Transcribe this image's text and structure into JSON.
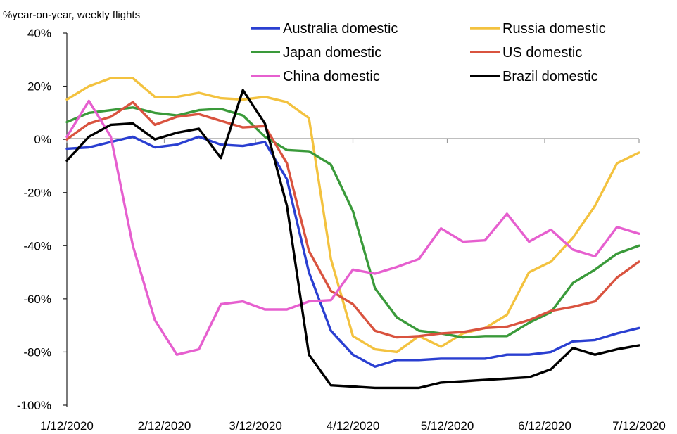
{
  "chart_data": {
    "type": "line",
    "ylabel": "%year-on-year, weekly flights",
    "ylim": [
      -100,
      40
    ],
    "y_ticks": [
      40,
      20,
      0,
      -20,
      -40,
      -60,
      -80,
      -100
    ],
    "y_tick_labels": [
      "40%",
      "20%",
      "0%",
      "-20%",
      "-40%",
      "-60%",
      "-80%",
      "-100%"
    ],
    "x_start": "1/12/2020",
    "x_end": "7/12/2020",
    "x_ticks": [
      "1/12/2020",
      "2/12/2020",
      "3/12/2020",
      "4/12/2020",
      "5/12/2020",
      "6/12/2020",
      "7/12/2020"
    ],
    "x": [
      "1/12/2020",
      "1/19/2020",
      "1/26/2020",
      "2/2/2020",
      "2/9/2020",
      "2/16/2020",
      "2/23/2020",
      "3/1/2020",
      "3/8/2020",
      "3/15/2020",
      "3/22/2020",
      "3/29/2020",
      "4/5/2020",
      "4/12/2020",
      "4/19/2020",
      "4/26/2020",
      "5/3/2020",
      "5/10/2020",
      "5/17/2020",
      "5/24/2020",
      "5/31/2020",
      "6/7/2020",
      "6/14/2020",
      "6/21/2020",
      "6/28/2020",
      "7/5/2020",
      "7/12/2020"
    ],
    "legend_position": "top",
    "grid": false,
    "series": [
      {
        "name": "Australia domestic",
        "color": "#2a3fd1",
        "values": [
          -3.5,
          -3,
          -1,
          1,
          -3,
          -2,
          1,
          -2,
          -2.5,
          -1,
          -15,
          -50,
          -72,
          -81,
          -85.5,
          -83,
          -83,
          -82.5,
          -82.5,
          -82.5,
          -81,
          -81,
          -80,
          -76,
          -75.5,
          -73,
          -71
        ]
      },
      {
        "name": "Russia domestic",
        "color": "#f3c23f",
        "values": [
          15,
          20,
          23,
          23,
          16,
          16,
          17.5,
          15.5,
          15,
          16,
          14,
          8,
          -45,
          -74,
          -79,
          -80,
          -74,
          -78,
          -73,
          -71,
          -66,
          -50,
          -46,
          -37,
          -25,
          -9,
          -5
        ]
      },
      {
        "name": "Japan domestic",
        "color": "#3a9a3a",
        "values": [
          6.5,
          10,
          11,
          12,
          10,
          9,
          11,
          11.5,
          9,
          1,
          -4,
          -4.5,
          -9.5,
          -27,
          -56,
          -67,
          -72,
          -73,
          -74.5,
          -74,
          -74,
          -69,
          -65,
          -54,
          -49,
          -43,
          -40
        ]
      },
      {
        "name": "US domestic",
        "color": "#d9533f",
        "values": [
          0,
          6,
          8.5,
          14,
          5.5,
          8.5,
          9.5,
          7,
          4.5,
          5,
          -9,
          -42,
          -57,
          -62,
          -72,
          -74.5,
          -74,
          -73,
          -72.5,
          -71,
          -70.5,
          -68,
          -64.5,
          -63,
          -61,
          -52,
          -46
        ]
      },
      {
        "name": "China domestic",
        "color": "#e65fcf",
        "values": [
          1,
          14.5,
          1,
          -40,
          -68,
          -81,
          -79,
          -62,
          -61,
          -64,
          -64,
          -61,
          -60.5,
          -49,
          -50.5,
          -48,
          -45,
          -33.5,
          -38.5,
          -38,
          -28,
          -38.5,
          -34,
          -41.5,
          -44,
          -33,
          -35.5
        ]
      },
      {
        "name": "Brazil domestic",
        "color": "#000000",
        "values": [
          -8,
          1,
          5.5,
          6,
          0,
          2.5,
          4,
          -7,
          18.5,
          6,
          -25,
          -81,
          -92.5,
          -93,
          -93.5,
          -93.5,
          -93.5,
          -91.5,
          -91,
          -90.5,
          -90,
          -89.5,
          -86.5,
          -78.5,
          -81,
          -79,
          -77.5
        ]
      }
    ]
  }
}
